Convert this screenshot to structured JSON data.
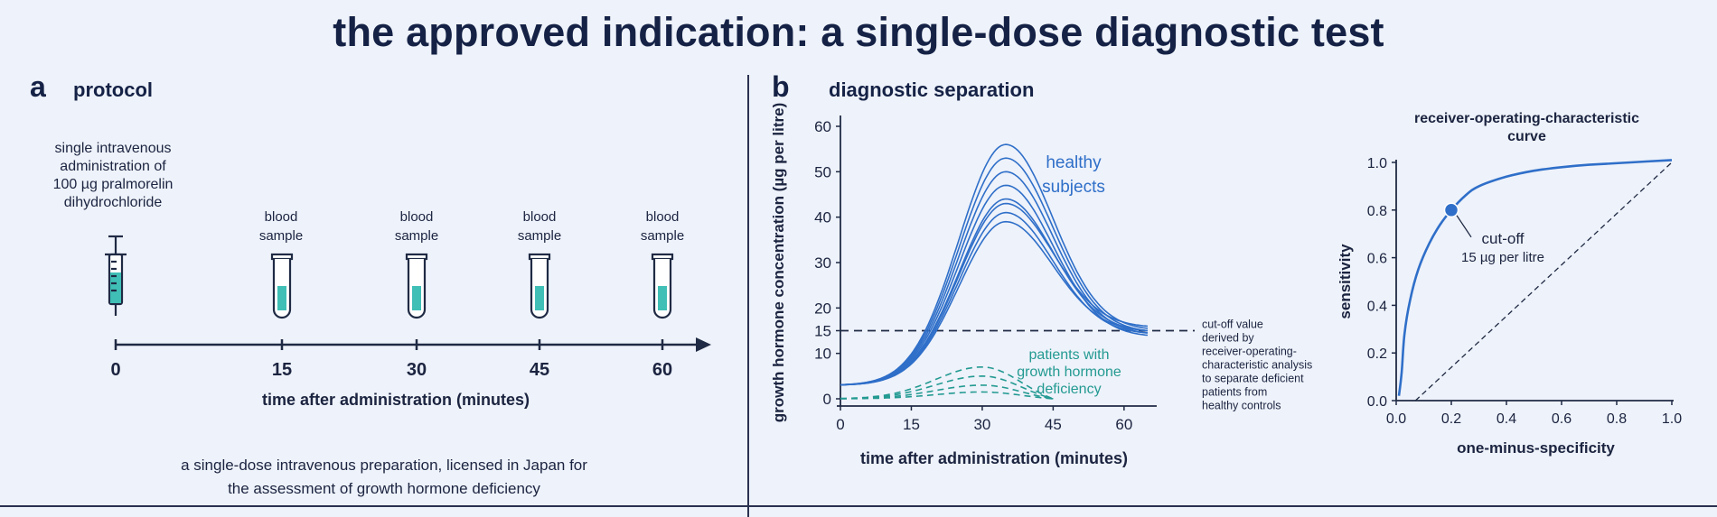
{
  "title": "the approved indication: a single-dose diagnostic test",
  "panel_a": {
    "letter": "a",
    "title": "protocol",
    "administration_label": [
      "single intravenous",
      "administration of",
      "100 µg pralmorelin",
      "dihydrochloride"
    ],
    "sample_label": [
      "blood",
      "sample"
    ],
    "timepoints": [
      "0",
      "15",
      "30",
      "45",
      "60"
    ],
    "axis_label": "time after administration (minutes)",
    "caption": [
      "a single-dose intravenous preparation, licensed in Japan for",
      "the assessment of growth hormone deficiency"
    ]
  },
  "panel_b": {
    "letter": "b",
    "title": "diagnostic separation",
    "chart_data": [
      {
        "type": "line",
        "xlabel": "time after administration (minutes)",
        "ylabel": "growth hormone concentration (µg per litre)",
        "xlim": [
          0,
          65
        ],
        "ylim": [
          0,
          60
        ],
        "xticks": [
          "0",
          "15",
          "30",
          "45",
          "60"
        ],
        "yticks": [
          "0",
          "10",
          "15",
          "20",
          "30",
          "40",
          "50",
          "60"
        ],
        "series_groups": [
          {
            "name": "healthy subjects",
            "label_lines": [
              "healthy",
              "subjects"
            ],
            "color": "#2f6fc9",
            "style": "solid",
            "baseline": 3,
            "peak_time": 35,
            "end_time": 65,
            "peaks": [
              56,
              53,
              50,
              47,
              44,
              43,
              41,
              39
            ],
            "end_values": [
              15.5,
              15,
              14.5,
              14,
              15,
              16,
              14.5,
              15
            ]
          },
          {
            "name": "patients with growth hormone deficiency",
            "label_lines": [
              "patients with",
              "growth hormone",
              "deficiency"
            ],
            "color": "#239a92",
            "style": "dashed",
            "baseline": 0,
            "peak_time": 30,
            "end_time": 45,
            "peaks": [
              7,
              5,
              3,
              1.5
            ],
            "end_values": [
              0,
              0,
              0,
              0
            ]
          }
        ],
        "cutoff": {
          "value": 15,
          "annotation": [
            "cut-off value",
            "derived by",
            "receiver-operating-",
            "characteristic analysis",
            "to separate deficient",
            "patients from",
            "healthy controls"
          ]
        }
      },
      {
        "type": "line",
        "title": [
          "receiver-operating-characteristic",
          "curve"
        ],
        "xlabel": "one-minus-specificity",
        "ylabel": "sensitivity",
        "xlim": [
          0,
          1
        ],
        "ylim": [
          0,
          1
        ],
        "xticks": [
          "0.0",
          "0.2",
          "0.4",
          "0.6",
          "0.8",
          "1.0"
        ],
        "yticks": [
          "0.0",
          "0.2",
          "0.4",
          "0.6",
          "0.8",
          "1.0"
        ],
        "roc_points": [
          [
            0.01,
            0.02
          ],
          [
            0.02,
            0.12
          ],
          [
            0.03,
            0.28
          ],
          [
            0.05,
            0.42
          ],
          [
            0.08,
            0.55
          ],
          [
            0.12,
            0.66
          ],
          [
            0.16,
            0.74
          ],
          [
            0.2,
            0.8
          ],
          [
            0.25,
            0.86
          ],
          [
            0.3,
            0.9
          ],
          [
            0.4,
            0.94
          ],
          [
            0.5,
            0.965
          ],
          [
            0.6,
            0.98
          ],
          [
            0.7,
            0.99
          ],
          [
            0.85,
            1.0
          ],
          [
            1.0,
            1.01
          ]
        ],
        "cutoff_point": {
          "x": 0.2,
          "y": 0.8,
          "label": [
            "cut-off",
            "15 µg per litre"
          ]
        },
        "chance_line": [
          [
            0.07,
            0.0
          ],
          [
            1.0,
            1.0
          ]
        ],
        "color": "#2f6fc9"
      }
    ]
  }
}
